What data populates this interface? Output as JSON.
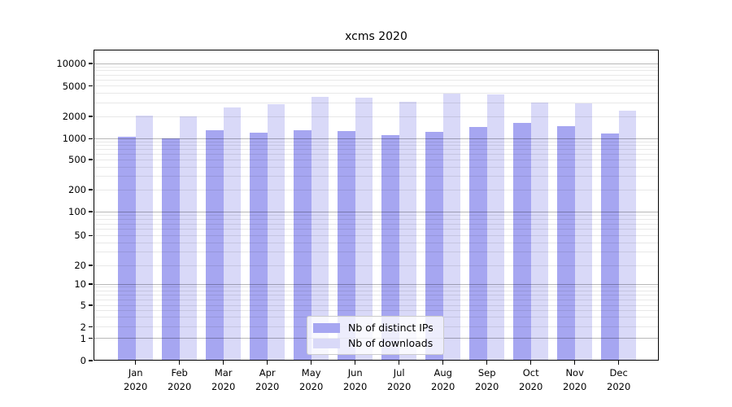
{
  "title": "xcms 2020",
  "chart_data": {
    "type": "bar",
    "title": "xcms 2020",
    "yscale": "symlog",
    "grid": true,
    "ylim": [
      0,
      15000
    ],
    "legend_position": "lower center",
    "categories": [
      "Jan 2020",
      "Feb 2020",
      "Mar 2020",
      "Apr 2020",
      "May 2020",
      "Jun 2020",
      "Jul 2020",
      "Aug 2020",
      "Sep 2020",
      "Oct 2020",
      "Nov 2020",
      "Dec 2020"
    ],
    "y_tick_labels": [
      "0",
      "1",
      "2",
      "5",
      "10",
      "20",
      "50",
      "100",
      "200",
      "500",
      "1000",
      "2000",
      "5000",
      "10000"
    ],
    "series": [
      {
        "name": "Nb of distinct IPs",
        "color": "#a6a6f1",
        "values": [
          1050,
          1020,
          1290,
          1210,
          1290,
          1260,
          1120,
          1250,
          1430,
          1620,
          1470,
          1170
        ]
      },
      {
        "name": "Nb of downloads",
        "color": "#d9d9f8",
        "values": [
          2050,
          2000,
          2600,
          2900,
          3600,
          3500,
          3100,
          3950,
          3850,
          3050,
          2950,
          2350
        ]
      }
    ]
  }
}
